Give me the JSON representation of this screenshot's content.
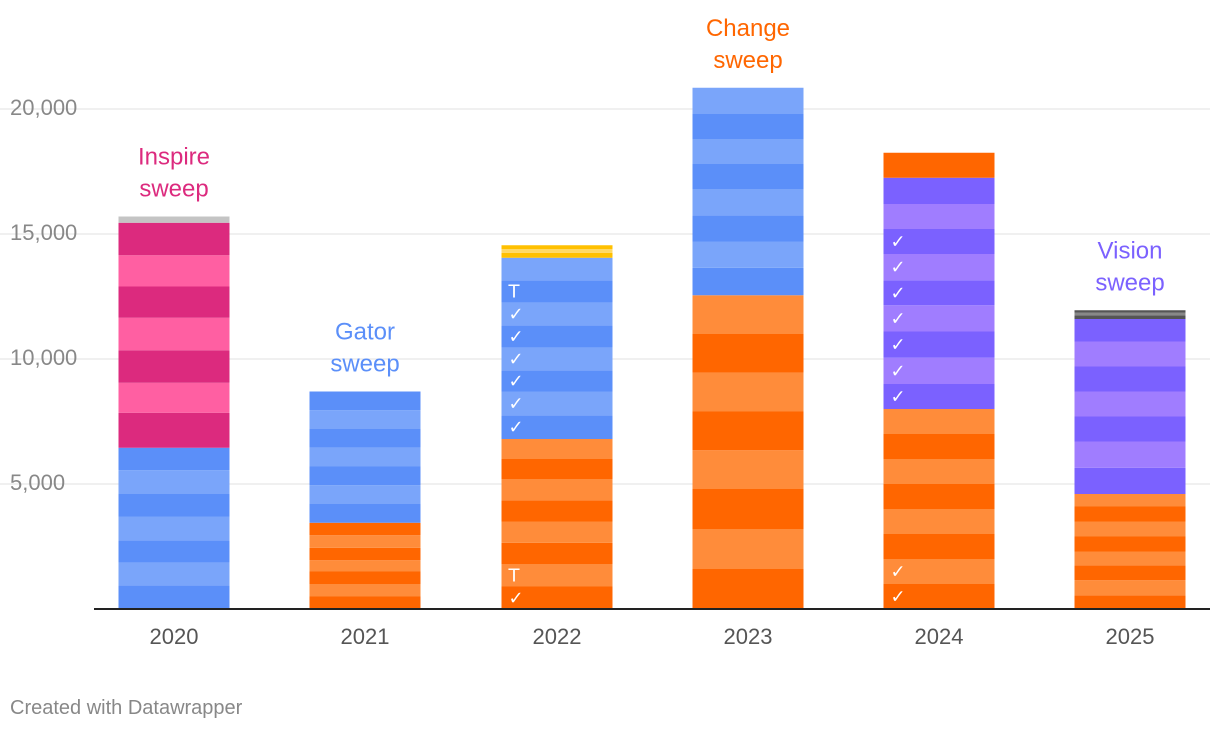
{
  "chart_data": {
    "type": "bar",
    "stacked": true,
    "categories": [
      "2020",
      "2021",
      "2022",
      "2023",
      "2024",
      "2025"
    ],
    "ylim": [
      0,
      21000
    ],
    "yticks": [
      5000,
      10000,
      15000,
      20000
    ],
    "ytick_labels": [
      "5,000",
      "10,000",
      "15,000",
      "20,000"
    ],
    "xlabel": "",
    "ylabel": "",
    "grid": true,
    "stacks": [
      {
        "year": "2020",
        "segments": [
          {
            "value": 950,
            "color": "#5b8ff9",
            "mark": ""
          },
          {
            "value": 900,
            "color": "#7aa5fa",
            "mark": ""
          },
          {
            "value": 900,
            "color": "#5b8ff9",
            "mark": ""
          },
          {
            "value": 950,
            "color": "#7aa5fa",
            "mark": ""
          },
          {
            "value": 900,
            "color": "#5b8ff9",
            "mark": ""
          },
          {
            "value": 950,
            "color": "#7aa5fa",
            "mark": ""
          },
          {
            "value": 900,
            "color": "#5b8ff9",
            "mark": ""
          },
          {
            "value": 1400,
            "color": "#dc2a7e",
            "mark": ""
          },
          {
            "value": 1200,
            "color": "#ff5fa2",
            "mark": ""
          },
          {
            "value": 1300,
            "color": "#dc2a7e",
            "mark": ""
          },
          {
            "value": 1300,
            "color": "#ff5fa2",
            "mark": ""
          },
          {
            "value": 1250,
            "color": "#dc2a7e",
            "mark": ""
          },
          {
            "value": 1250,
            "color": "#ff5fa2",
            "mark": ""
          },
          {
            "value": 1300,
            "color": "#dc2a7e",
            "mark": ""
          },
          {
            "value": 250,
            "color": "#c4c4c4",
            "mark": ""
          }
        ]
      },
      {
        "year": "2021",
        "segments": [
          {
            "value": 500,
            "color": "#ff6600",
            "mark": ""
          },
          {
            "value": 500,
            "color": "#ff8c3a",
            "mark": ""
          },
          {
            "value": 500,
            "color": "#ff6600",
            "mark": ""
          },
          {
            "value": 450,
            "color": "#ff8c3a",
            "mark": ""
          },
          {
            "value": 500,
            "color": "#ff6600",
            "mark": ""
          },
          {
            "value": 500,
            "color": "#ff8c3a",
            "mark": ""
          },
          {
            "value": 500,
            "color": "#ff6600",
            "mark": ""
          },
          {
            "value": 750,
            "color": "#5b8ff9",
            "mark": ""
          },
          {
            "value": 750,
            "color": "#7aa5fa",
            "mark": ""
          },
          {
            "value": 750,
            "color": "#5b8ff9",
            "mark": ""
          },
          {
            "value": 750,
            "color": "#7aa5fa",
            "mark": ""
          },
          {
            "value": 750,
            "color": "#5b8ff9",
            "mark": ""
          },
          {
            "value": 750,
            "color": "#7aa5fa",
            "mark": ""
          },
          {
            "value": 750,
            "color": "#5b8ff9",
            "mark": ""
          }
        ]
      },
      {
        "year": "2022",
        "segments": [
          {
            "value": 900,
            "color": "#ff6600",
            "mark": "✓"
          },
          {
            "value": 900,
            "color": "#ff8c3a",
            "mark": "T"
          },
          {
            "value": 850,
            "color": "#ff6600",
            "mark": ""
          },
          {
            "value": 850,
            "color": "#ff8c3a",
            "mark": ""
          },
          {
            "value": 850,
            "color": "#ff6600",
            "mark": ""
          },
          {
            "value": 850,
            "color": "#ff8c3a",
            "mark": ""
          },
          {
            "value": 800,
            "color": "#ff6600",
            "mark": ""
          },
          {
            "value": 800,
            "color": "#ff8c3a",
            "mark": ""
          },
          {
            "value": 950,
            "color": "#5b8ff9",
            "mark": "✓"
          },
          {
            "value": 950,
            "color": "#7aa5fa",
            "mark": "✓"
          },
          {
            "value": 850,
            "color": "#5b8ff9",
            "mark": "✓"
          },
          {
            "value": 900,
            "color": "#7aa5fa",
            "mark": "✓"
          },
          {
            "value": 900,
            "color": "#5b8ff9",
            "mark": "✓"
          },
          {
            "value": 900,
            "color": "#7aa5fa",
            "mark": "✓"
          },
          {
            "value": 900,
            "color": "#5b8ff9",
            "mark": "T"
          },
          {
            "value": 900,
            "color": "#7aa5fa",
            "mark": ""
          },
          {
            "value": 200,
            "color": "#ffc000",
            "mark": ""
          },
          {
            "value": 150,
            "color": "#ffd966",
            "mark": ""
          },
          {
            "value": 150,
            "color": "#ffc000",
            "mark": ""
          }
        ]
      },
      {
        "year": "2023",
        "segments": [
          {
            "value": 1600,
            "color": "#ff6600",
            "mark": ""
          },
          {
            "value": 1600,
            "color": "#ff8c3a",
            "mark": ""
          },
          {
            "value": 1600,
            "color": "#ff6600",
            "mark": ""
          },
          {
            "value": 1550,
            "color": "#ff8c3a",
            "mark": ""
          },
          {
            "value": 1550,
            "color": "#ff6600",
            "mark": ""
          },
          {
            "value": 1550,
            "color": "#ff8c3a",
            "mark": ""
          },
          {
            "value": 1550,
            "color": "#ff6600",
            "mark": ""
          },
          {
            "value": 1550,
            "color": "#ff8c3a",
            "mark": ""
          },
          {
            "value": 1100,
            "color": "#5b8ff9",
            "mark": ""
          },
          {
            "value": 1050,
            "color": "#7aa5fa",
            "mark": ""
          },
          {
            "value": 1050,
            "color": "#5b8ff9",
            "mark": ""
          },
          {
            "value": 1050,
            "color": "#7aa5fa",
            "mark": ""
          },
          {
            "value": 1000,
            "color": "#5b8ff9",
            "mark": ""
          },
          {
            "value": 1000,
            "color": "#7aa5fa",
            "mark": ""
          },
          {
            "value": 1000,
            "color": "#5b8ff9",
            "mark": ""
          },
          {
            "value": 1050,
            "color": "#7aa5fa",
            "mark": ""
          }
        ]
      },
      {
        "year": "2024",
        "segments": [
          {
            "value": 1000,
            "color": "#ff6600",
            "mark": "✓"
          },
          {
            "value": 1000,
            "color": "#ff8c3a",
            "mark": "✓"
          },
          {
            "value": 1000,
            "color": "#ff6600",
            "mark": ""
          },
          {
            "value": 1000,
            "color": "#ff8c3a",
            "mark": ""
          },
          {
            "value": 1000,
            "color": "#ff6600",
            "mark": ""
          },
          {
            "value": 1000,
            "color": "#ff8c3a",
            "mark": ""
          },
          {
            "value": 1000,
            "color": "#ff6600",
            "mark": ""
          },
          {
            "value": 1000,
            "color": "#ff8c3a",
            "mark": ""
          },
          {
            "value": 1000,
            "color": "#7b61ff",
            "mark": "✓"
          },
          {
            "value": 1050,
            "color": "#a07dff",
            "mark": "✓"
          },
          {
            "value": 1050,
            "color": "#7b61ff",
            "mark": "✓"
          },
          {
            "value": 1050,
            "color": "#a07dff",
            "mark": "✓"
          },
          {
            "value": 1000,
            "color": "#7b61ff",
            "mark": "✓"
          },
          {
            "value": 1050,
            "color": "#a07dff",
            "mark": "✓"
          },
          {
            "value": 1000,
            "color": "#7b61ff",
            "mark": "✓"
          },
          {
            "value": 1000,
            "color": "#a07dff",
            "mark": ""
          },
          {
            "value": 1050,
            "color": "#7b61ff",
            "mark": ""
          },
          {
            "value": 1000,
            "color": "#ff6600",
            "mark": ""
          }
        ]
      },
      {
        "year": "2025",
        "segments": [
          {
            "value": 550,
            "color": "#ff6600",
            "mark": ""
          },
          {
            "value": 600,
            "color": "#ff8c3a",
            "mark": ""
          },
          {
            "value": 600,
            "color": "#ff6600",
            "mark": ""
          },
          {
            "value": 550,
            "color": "#ff8c3a",
            "mark": ""
          },
          {
            "value": 600,
            "color": "#ff6600",
            "mark": ""
          },
          {
            "value": 600,
            "color": "#ff8c3a",
            "mark": ""
          },
          {
            "value": 600,
            "color": "#ff6600",
            "mark": ""
          },
          {
            "value": 500,
            "color": "#ff8c3a",
            "mark": ""
          },
          {
            "value": 1050,
            "color": "#7b61ff",
            "mark": ""
          },
          {
            "value": 1050,
            "color": "#a07dff",
            "mark": ""
          },
          {
            "value": 1000,
            "color": "#7b61ff",
            "mark": ""
          },
          {
            "value": 1000,
            "color": "#a07dff",
            "mark": ""
          },
          {
            "value": 1000,
            "color": "#7b61ff",
            "mark": ""
          },
          {
            "value": 1000,
            "color": "#a07dff",
            "mark": ""
          },
          {
            "value": 900,
            "color": "#7b61ff",
            "mark": ""
          },
          {
            "value": 150,
            "color": "#555555",
            "mark": ""
          },
          {
            "value": 100,
            "color": "#888888",
            "mark": ""
          },
          {
            "value": 100,
            "color": "#555555",
            "mark": ""
          }
        ]
      }
    ],
    "annotations": [
      {
        "year": "2020",
        "lines": [
          "Inspire",
          "sweep"
        ],
        "color": "#dc2a7e"
      },
      {
        "year": "2021",
        "lines": [
          "Gator",
          "sweep"
        ],
        "color": "#5b8ff9"
      },
      {
        "year": "2023",
        "lines": [
          "Change",
          "sweep"
        ],
        "color": "#ff6600"
      },
      {
        "year": "2025",
        "lines": [
          "Vision",
          "sweep"
        ],
        "color": "#7b61ff"
      }
    ]
  },
  "footer": {
    "credit": "Created with Datawrapper"
  },
  "colors": {
    "grid": "#e0e0e0",
    "axis": "#222222",
    "tick_text": "#888888",
    "category_text": "#555555",
    "mark_text": "#ffffff"
  }
}
